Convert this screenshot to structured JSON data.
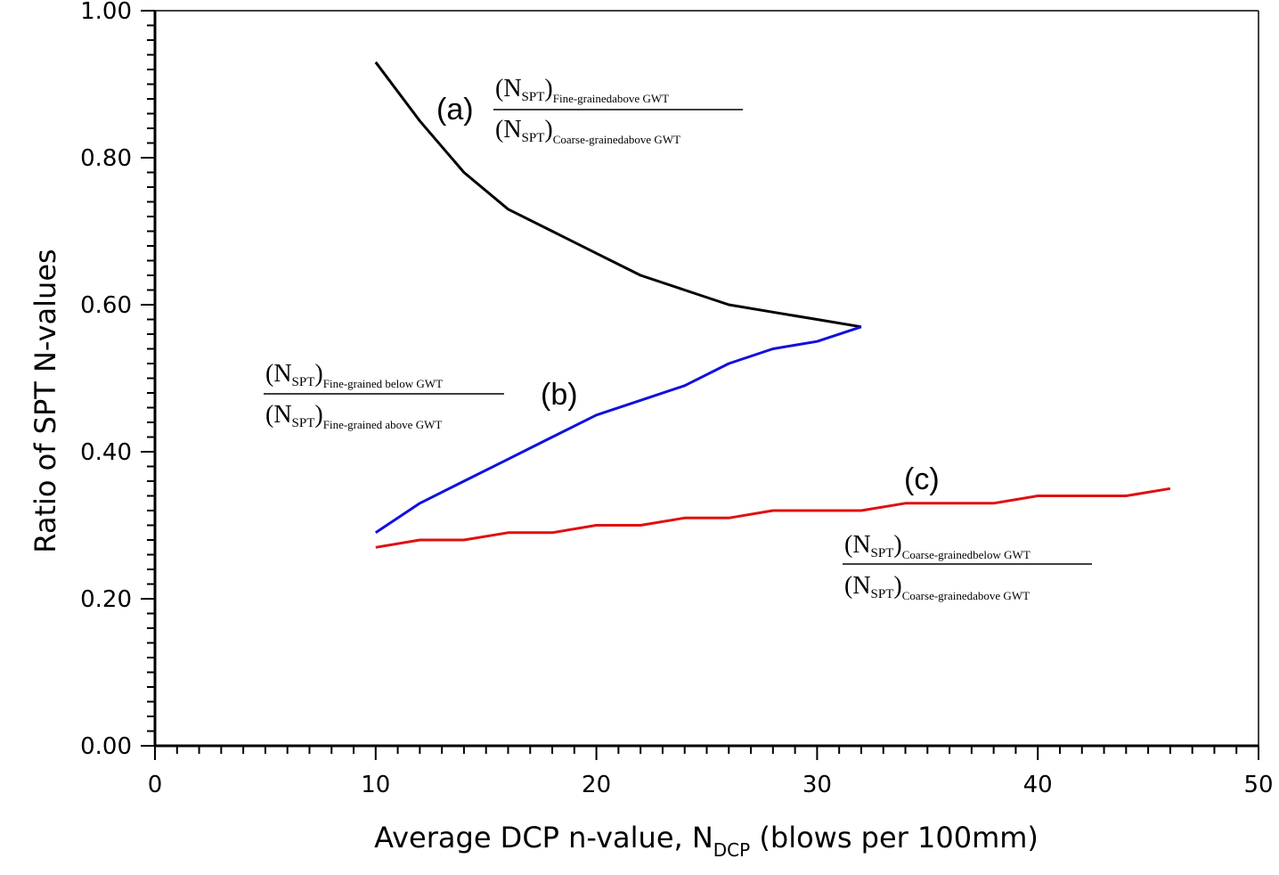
{
  "chart_data": {
    "type": "line",
    "xlabel": {
      "main": "Average DCP n-value, N",
      "sub": "DCP",
      "tail": " (blows per 100mm)"
    },
    "ylabel": "Ratio of SPT N-values",
    "xlim": [
      0,
      50
    ],
    "ylim": [
      0,
      1.0
    ],
    "x_ticks": [
      "0",
      "10",
      "20",
      "30",
      "40",
      "50"
    ],
    "y_ticks": [
      "0.00",
      "0.20",
      "0.40",
      "0.60",
      "0.80",
      "1.00"
    ],
    "grid": false,
    "series": [
      {
        "name": "(a)",
        "color": "#000000",
        "x": [
          10,
          12,
          14,
          16,
          18,
          20,
          22,
          24,
          26,
          28,
          30,
          32
        ],
        "y": [
          0.93,
          0.85,
          0.78,
          0.73,
          0.7,
          0.67,
          0.64,
          0.62,
          0.6,
          0.59,
          0.58,
          0.57
        ],
        "ratio": {
          "num": {
            "N": "(N",
            "sub": "SPT",
            "close": ")",
            "subsub": "Fine-grainedabove GWT"
          },
          "den": {
            "N": "(N",
            "sub": "SPT",
            "close": ")",
            "subsub": "Coarse-grainedabove GWT"
          }
        }
      },
      {
        "name": "(b)",
        "color": "#1010e0",
        "x": [
          10,
          12,
          14,
          16,
          18,
          20,
          22,
          24,
          26,
          28,
          30,
          32
        ],
        "y": [
          0.29,
          0.33,
          0.36,
          0.39,
          0.42,
          0.45,
          0.47,
          0.49,
          0.52,
          0.54,
          0.55,
          0.57
        ],
        "ratio": {
          "num": {
            "N": "(N",
            "sub": "SPT",
            "close": ")",
            "subsub": "Fine-grained below GWT"
          },
          "den": {
            "N": "(N",
            "sub": "SPT",
            "close": ")",
            "subsub": "Fine-grained above GWT"
          }
        }
      },
      {
        "name": "(c)",
        "color": "#e01010",
        "x": [
          10,
          12,
          14,
          16,
          18,
          20,
          22,
          24,
          26,
          28,
          30,
          32,
          34,
          36,
          38,
          40,
          42,
          44,
          46
        ],
        "y": [
          0.27,
          0.28,
          0.28,
          0.29,
          0.29,
          0.3,
          0.3,
          0.31,
          0.31,
          0.32,
          0.32,
          0.32,
          0.33,
          0.33,
          0.33,
          0.34,
          0.34,
          0.34,
          0.35
        ],
        "ratio": {
          "num": {
            "N": "(N",
            "sub": "SPT",
            "close": ")",
            "subsub": "Coarse-grainedbelow GWT"
          },
          "den": {
            "N": "(N",
            "sub": "SPT",
            "close": ")",
            "subsub": "Coarse-grainedabove GWT"
          }
        }
      }
    ]
  }
}
